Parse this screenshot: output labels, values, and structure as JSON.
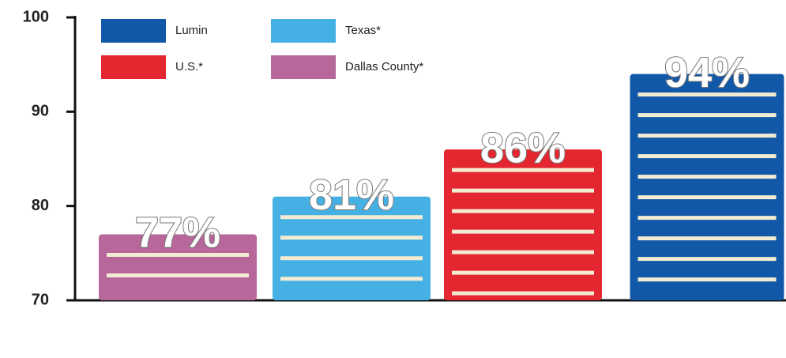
{
  "chart_data": {
    "type": "bar",
    "categories": [
      "Dallas County*",
      "Texas*",
      "U.S.*",
      "Lumin"
    ],
    "values": [
      77,
      81,
      86,
      94
    ],
    "value_labels": [
      "77%",
      "81%",
      "86%",
      "94%"
    ],
    "colors": [
      "#b7679a",
      "#45b0e4",
      "#e3262f",
      "#1258a8"
    ],
    "ylim": [
      70,
      100
    ],
    "yticks": [
      70,
      80,
      90,
      100
    ],
    "grid": false
  }
}
